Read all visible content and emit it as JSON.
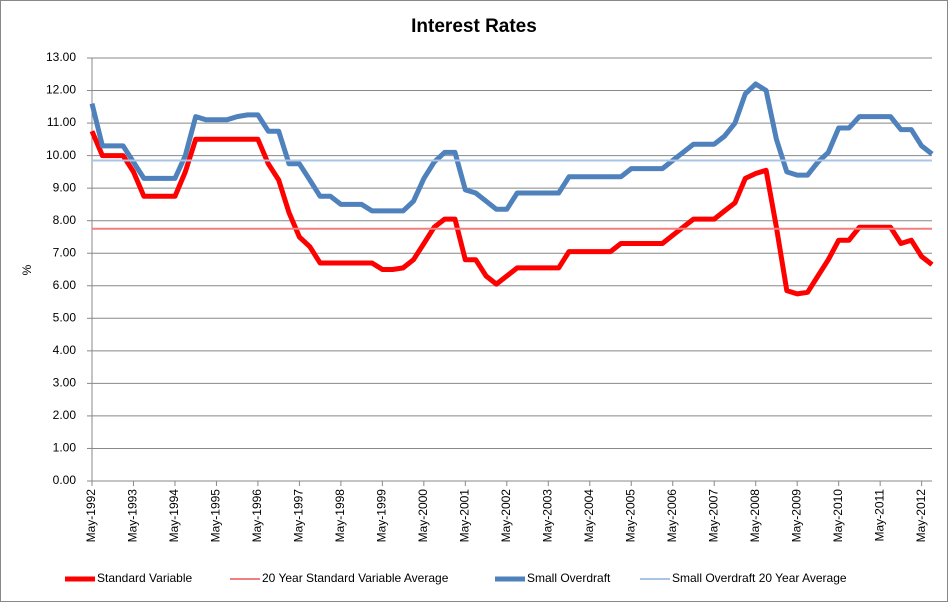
{
  "chart_data": {
    "type": "line",
    "title": "Interest Rates",
    "y_label": "%",
    "categories": [
      "May-1992",
      null,
      null,
      null,
      "May-1993",
      null,
      null,
      null,
      "May-1994",
      null,
      null,
      null,
      "May-1995",
      null,
      null,
      null,
      "May-1996",
      null,
      null,
      null,
      "May-1997",
      null,
      null,
      null,
      "May-1998",
      null,
      null,
      null,
      "May-1999",
      null,
      null,
      null,
      "May-2000",
      null,
      null,
      null,
      "May-2001",
      null,
      null,
      null,
      "May-2002",
      null,
      null,
      null,
      "May-2003",
      null,
      null,
      null,
      "May-2004",
      null,
      null,
      null,
      "May-2005",
      null,
      null,
      null,
      "May-2006",
      null,
      null,
      null,
      "May-2007",
      null,
      null,
      null,
      "May-2008",
      null,
      null,
      null,
      "May-2009",
      null,
      null,
      null,
      "May-2010",
      null,
      null,
      null,
      "May-2011",
      null,
      null,
      null,
      "May-2012",
      null
    ],
    "series": [
      {
        "name": "Standard Variable",
        "color": "#ff0000",
        "width": 5,
        "values": [
          10.75,
          10.0,
          10.0,
          10.0,
          9.5,
          8.75,
          8.75,
          8.75,
          8.75,
          9.5,
          10.5,
          10.5,
          10.5,
          10.5,
          10.5,
          10.5,
          10.5,
          9.75,
          9.25,
          8.25,
          7.5,
          7.2,
          6.7,
          6.7,
          6.7,
          6.7,
          6.7,
          6.7,
          6.5,
          6.5,
          6.55,
          6.8,
          7.3,
          7.8,
          8.05,
          8.05,
          6.8,
          6.8,
          6.3,
          6.05,
          6.3,
          6.55,
          6.55,
          6.55,
          6.55,
          6.55,
          7.05,
          7.05,
          7.05,
          7.05,
          7.05,
          7.3,
          7.3,
          7.3,
          7.3,
          7.3,
          7.55,
          7.8,
          8.05,
          8.05,
          8.05,
          8.3,
          8.55,
          9.3,
          9.45,
          9.55,
          7.8,
          5.85,
          5.75,
          5.8,
          6.3,
          6.8,
          7.4,
          7.4,
          7.8,
          7.8,
          7.8,
          7.8,
          7.3,
          7.4,
          6.9,
          6.65
        ]
      },
      {
        "name": "20 Year Standard Variable Average",
        "color": "#f08080",
        "width": 2,
        "values": [
          7.75,
          7.75,
          7.75,
          7.75,
          7.75,
          7.75,
          7.75,
          7.75,
          7.75,
          7.75,
          7.75,
          7.75,
          7.75,
          7.75,
          7.75,
          7.75,
          7.75,
          7.75,
          7.75,
          7.75,
          7.75,
          7.75,
          7.75,
          7.75,
          7.75,
          7.75,
          7.75,
          7.75,
          7.75,
          7.75,
          7.75,
          7.75,
          7.75,
          7.75,
          7.75,
          7.75,
          7.75,
          7.75,
          7.75,
          7.75,
          7.75,
          7.75,
          7.75,
          7.75,
          7.75,
          7.75,
          7.75,
          7.75,
          7.75,
          7.75,
          7.75,
          7.75,
          7.75,
          7.75,
          7.75,
          7.75,
          7.75,
          7.75,
          7.75,
          7.75,
          7.75,
          7.75,
          7.75,
          7.75,
          7.75,
          7.75,
          7.75,
          7.75,
          7.75,
          7.75,
          7.75,
          7.75,
          7.75,
          7.75,
          7.75,
          7.75,
          7.75,
          7.75,
          7.75,
          7.75,
          7.75,
          7.75
        ]
      },
      {
        "name": "Small Overdraft",
        "color": "#4f81bd",
        "width": 5,
        "values": [
          11.6,
          10.3,
          10.3,
          10.3,
          9.8,
          9.3,
          9.3,
          9.3,
          9.3,
          10.0,
          11.2,
          11.1,
          11.1,
          11.1,
          11.2,
          11.25,
          11.25,
          10.75,
          10.75,
          9.75,
          9.75,
          9.25,
          8.75,
          8.75,
          8.5,
          8.5,
          8.5,
          8.3,
          8.3,
          8.3,
          8.3,
          8.6,
          9.3,
          9.8,
          10.1,
          10.1,
          8.95,
          8.85,
          8.6,
          8.35,
          8.35,
          8.85,
          8.85,
          8.85,
          8.85,
          8.85,
          9.35,
          9.35,
          9.35,
          9.35,
          9.35,
          9.35,
          9.6,
          9.6,
          9.6,
          9.6,
          9.85,
          10.1,
          10.35,
          10.35,
          10.35,
          10.6,
          11.0,
          11.9,
          12.2,
          12.0,
          10.5,
          9.5,
          9.4,
          9.4,
          9.8,
          10.1,
          10.85,
          10.85,
          11.2,
          11.2,
          11.2,
          11.2,
          10.8,
          10.8,
          10.3,
          10.05
        ]
      },
      {
        "name": "Small Overdraft 20 Year Average",
        "color": "#a9c4e4",
        "width": 2,
        "values": [
          9.85,
          9.85,
          9.85,
          9.85,
          9.85,
          9.85,
          9.85,
          9.85,
          9.85,
          9.85,
          9.85,
          9.85,
          9.85,
          9.85,
          9.85,
          9.85,
          9.85,
          9.85,
          9.85,
          9.85,
          9.85,
          9.85,
          9.85,
          9.85,
          9.85,
          9.85,
          9.85,
          9.85,
          9.85,
          9.85,
          9.85,
          9.85,
          9.85,
          9.85,
          9.85,
          9.85,
          9.85,
          9.85,
          9.85,
          9.85,
          9.85,
          9.85,
          9.85,
          9.85,
          9.85,
          9.85,
          9.85,
          9.85,
          9.85,
          9.85,
          9.85,
          9.85,
          9.85,
          9.85,
          9.85,
          9.85,
          9.85,
          9.85,
          9.85,
          9.85,
          9.85,
          9.85,
          9.85,
          9.85,
          9.85,
          9.85,
          9.85,
          9.85,
          9.85,
          9.85,
          9.85,
          9.85,
          9.85,
          9.85,
          9.85,
          9.85,
          9.85,
          9.85,
          9.85,
          9.85,
          9.85,
          9.85
        ]
      }
    ],
    "ylim": [
      0,
      13
    ],
    "yticks": [
      {
        "value": 0,
        "label": "0.00"
      },
      {
        "value": 1,
        "label": "1.00"
      },
      {
        "value": 2,
        "label": "2.00"
      },
      {
        "value": 3,
        "label": "3.00"
      },
      {
        "value": 4,
        "label": "4.00"
      },
      {
        "value": 5,
        "label": "5.00"
      },
      {
        "value": 6,
        "label": "6.00"
      },
      {
        "value": 7,
        "label": "7.00"
      },
      {
        "value": 8,
        "label": "8.00"
      },
      {
        "value": 9,
        "label": "9.00"
      },
      {
        "value": 10,
        "label": "10.00"
      },
      {
        "value": 11,
        "label": "11.00"
      },
      {
        "value": 12,
        "label": "12.00"
      },
      {
        "value": 13,
        "label": "13.00"
      }
    ],
    "grid": true,
    "legend": "bottom"
  }
}
